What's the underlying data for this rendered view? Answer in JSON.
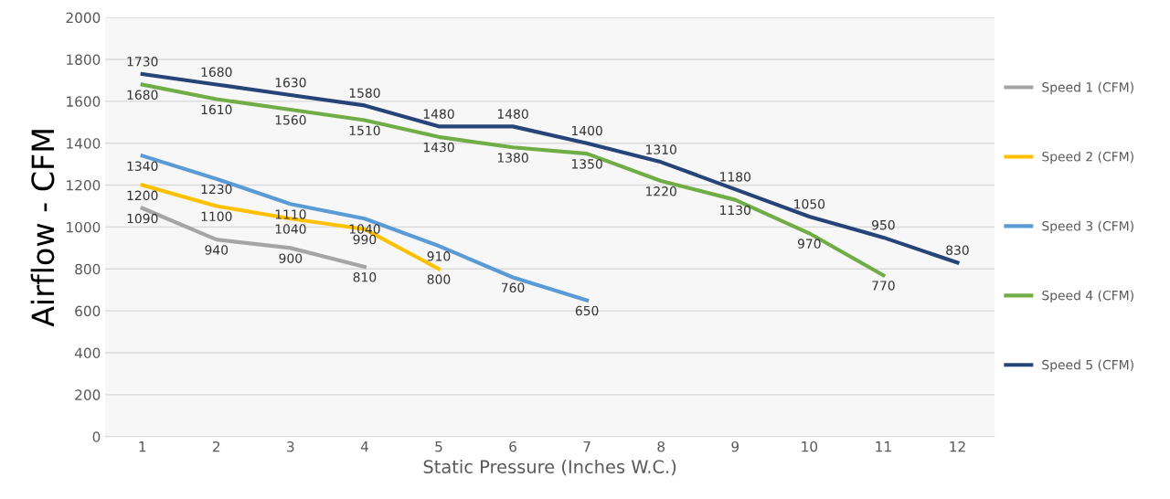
{
  "chart_data": {
    "type": "line",
    "xlabel": "Static Pressure (Inches W.C.)",
    "ylabel": "Airflow - CFM",
    "categories": [
      "1",
      "2",
      "3",
      "4",
      "5",
      "6",
      "7",
      "8",
      "9",
      "10",
      "11",
      "12"
    ],
    "series": [
      {
        "name": "Speed 1 (CFM)",
        "color": "#a5a5a5",
        "values": [
          1090,
          940,
          900,
          810,
          null,
          null,
          null,
          null,
          null,
          null,
          null,
          null
        ]
      },
      {
        "name": "Speed 2 (CFM)",
        "color": "#ffc000",
        "values": [
          1200,
          1100,
          1040,
          990,
          800,
          null,
          null,
          null,
          null,
          null,
          null,
          null
        ]
      },
      {
        "name": "Speed 3 (CFM)",
        "color": "#5b9bd5",
        "values": [
          1340,
          1230,
          1110,
          1040,
          910,
          760,
          650,
          null,
          null,
          null,
          null,
          null
        ]
      },
      {
        "name": "Speed 4 (CFM)",
        "color": "#70ad47",
        "values": [
          1680,
          1610,
          1560,
          1510,
          1430,
          1380,
          1350,
          1220,
          1130,
          970,
          770,
          null
        ]
      },
      {
        "name": "Speed 5 (CFM)",
        "color": "#264478",
        "values": [
          1730,
          1680,
          1630,
          1580,
          1480,
          1480,
          1400,
          1310,
          1180,
          1050,
          950,
          830
        ]
      }
    ],
    "ylim": [
      0,
      2000
    ],
    "yticks": [
      0,
      200,
      400,
      600,
      800,
      1000,
      1200,
      1400,
      1600,
      1800,
      2000
    ],
    "grid": "y",
    "legend": "right",
    "data_labels": true,
    "marker": "none",
    "line_style": "solid"
  }
}
